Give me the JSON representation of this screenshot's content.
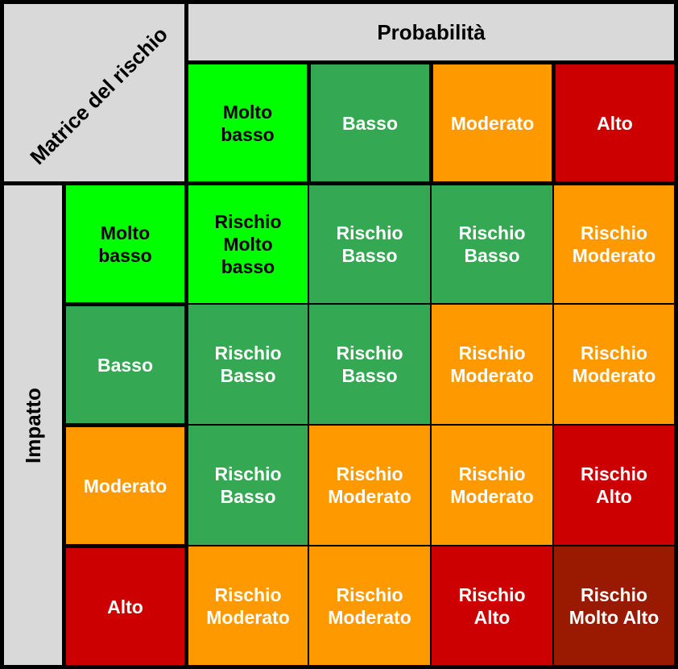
{
  "title": "Matrice del rischio",
  "x_axis": {
    "label": "Probabilità",
    "levels": [
      "Molto\nbasso",
      "Basso",
      "Moderato",
      "Alto"
    ]
  },
  "y_axis": {
    "label": "Impatto",
    "levels": [
      "Molto\nbasso",
      "Basso",
      "Moderato",
      "Alto"
    ]
  },
  "cells": [
    [
      "Rischio\nMolto\nbasso",
      "Rischio\nBasso",
      "Rischio\nBasso",
      "Rischio\nModerato"
    ],
    [
      "Rischio\nBasso",
      "Rischio\nBasso",
      "Rischio\nModerato",
      "Rischio\nModerato"
    ],
    [
      "Rischio\nBasso",
      "Rischio\nModerato",
      "Rischio\nModerato",
      "Rischio\nAlto"
    ],
    [
      "Rischio\nModerato",
      "Rischio\nModerato",
      "Rischio\nAlto",
      "Rischio\nMolto Alto"
    ]
  ],
  "colors": {
    "molto_basso": "#00ff00",
    "basso": "#34a853",
    "moderato": "#ff9900",
    "alto": "#cc0000",
    "molto_alto": "#991a00",
    "header": "#d9d9d9"
  }
}
